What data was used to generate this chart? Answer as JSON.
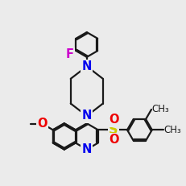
{
  "bg_color": "#ebebeb",
  "bond_color": "#1a1a1a",
  "N_color": "#0000ee",
  "O_color": "#ee0000",
  "S_color": "#cccc00",
  "F_color": "#cc00cc",
  "line_width": 1.6,
  "font_size": 10.5,
  "small_font": 8.5,
  "ring_r": 20
}
